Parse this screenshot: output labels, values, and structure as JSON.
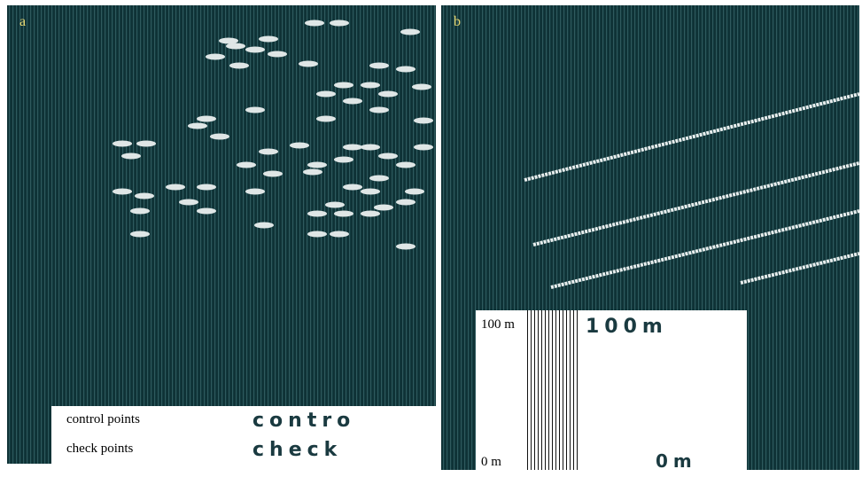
{
  "panels": [
    {
      "label": "a",
      "legend": {
        "items": [
          "control points",
          "check points"
        ],
        "artifacts": [
          "contro",
          "check"
        ]
      }
    },
    {
      "label": "b",
      "scale": {
        "top": "100 m",
        "bottom": "0 m",
        "artifacts": [
          "100m",
          "0m"
        ]
      }
    }
  ]
}
